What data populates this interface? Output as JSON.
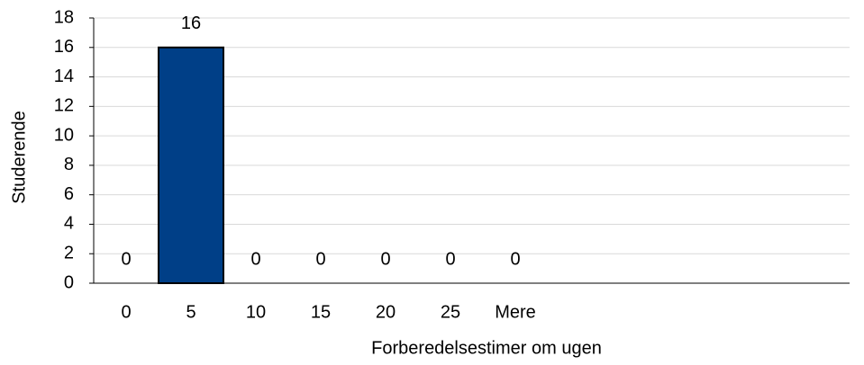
{
  "chart_data": {
    "type": "bar",
    "categories": [
      "0",
      "5",
      "10",
      "15",
      "20",
      "25",
      "Mere"
    ],
    "values": [
      0,
      16,
      0,
      0,
      0,
      0,
      0
    ],
    "color": "#003f87",
    "x_label": "Forberedelsestimer om ugen",
    "y_label": "Studerende",
    "ylim": [
      0,
      18
    ],
    "yticks": [
      0,
      2,
      4,
      6,
      8,
      10,
      12,
      14,
      16,
      18
    ],
    "grid": true
  }
}
